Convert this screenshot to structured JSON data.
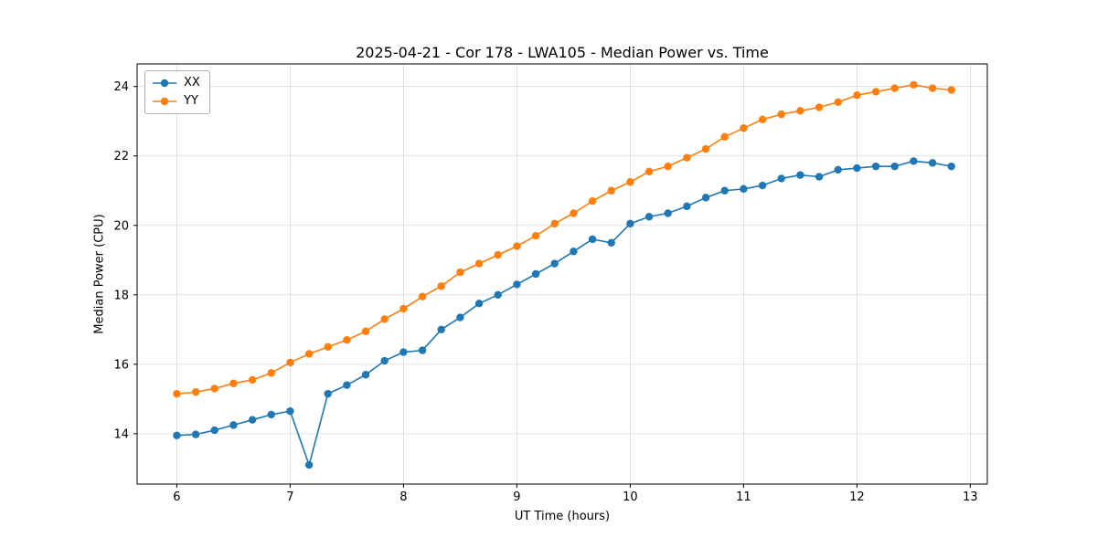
{
  "chart_data": {
    "type": "line",
    "title": "2025-04-21 - Cor 178 - LWA105 - Median Power vs. Time",
    "xlabel": "UT Time (hours)",
    "ylabel": "Median Power (CPU)",
    "xlim": [
      5.65,
      13.15
    ],
    "ylim": [
      12.55,
      24.65
    ],
    "xticks": [
      6,
      7,
      8,
      9,
      10,
      11,
      12,
      13
    ],
    "yticks": [
      14,
      16,
      18,
      20,
      22,
      24
    ],
    "grid": true,
    "legend_position": "upper left",
    "x": [
      6.0,
      6.167,
      6.333,
      6.5,
      6.667,
      6.833,
      7.0,
      7.167,
      7.333,
      7.5,
      7.667,
      7.833,
      8.0,
      8.167,
      8.333,
      8.5,
      8.667,
      8.833,
      9.0,
      9.167,
      9.333,
      9.5,
      9.667,
      9.833,
      10.0,
      10.167,
      10.333,
      10.5,
      10.667,
      10.833,
      11.0,
      11.167,
      11.333,
      11.5,
      11.667,
      11.833,
      12.0,
      12.167,
      12.333,
      12.5,
      12.667,
      12.833
    ],
    "series": [
      {
        "name": "XX",
        "color": "#1f77b4",
        "values": [
          13.95,
          13.98,
          14.1,
          14.25,
          14.4,
          14.55,
          14.65,
          13.1,
          15.15,
          15.4,
          15.7,
          16.1,
          16.35,
          16.4,
          17.0,
          17.35,
          17.75,
          18.0,
          18.3,
          18.6,
          18.9,
          19.25,
          19.6,
          19.5,
          20.05,
          20.25,
          20.35,
          20.55,
          20.8,
          21.0,
          21.05,
          21.15,
          21.35,
          21.45,
          21.4,
          21.6,
          21.65,
          21.7,
          21.7,
          21.85,
          21.8,
          21.7
        ]
      },
      {
        "name": "YY",
        "color": "#ff7f0e",
        "values": [
          15.15,
          15.2,
          15.3,
          15.45,
          15.55,
          15.75,
          16.05,
          16.3,
          16.5,
          16.7,
          16.95,
          17.3,
          17.6,
          17.95,
          18.25,
          18.65,
          18.9,
          19.15,
          19.4,
          19.7,
          20.05,
          20.35,
          20.7,
          21.0,
          21.25,
          21.55,
          21.7,
          21.95,
          22.2,
          22.55,
          22.8,
          23.05,
          23.2,
          23.3,
          23.4,
          23.55,
          23.75,
          23.85,
          23.95,
          24.05,
          23.95,
          23.9
        ]
      }
    ]
  },
  "style": {
    "grid_color": "#d9d9d9",
    "spine_color": "#000000",
    "tick_color": "#000000"
  }
}
